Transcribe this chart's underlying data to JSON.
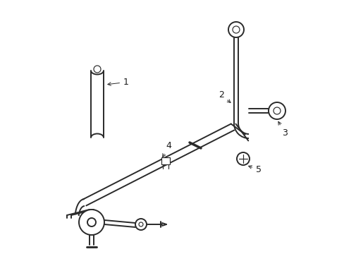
{
  "background_color": "#ffffff",
  "line_color": "#2a2a2a",
  "text_color": "#1a1a1a",
  "figsize": [
    4.89,
    3.6
  ],
  "dpi": 100,
  "lw_main": 1.4,
  "lw_thin": 0.85,
  "lw_pipe": 1.3
}
